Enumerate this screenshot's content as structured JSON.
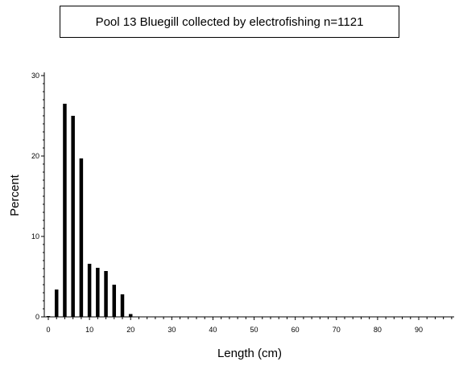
{
  "title": "Pool 13 Bluegill collected by electrofishing n=1121",
  "chart_data": {
    "type": "bar",
    "title": "Pool 13 Bluegill collected by electrofishing n=1121",
    "xlabel": "Length (cm)",
    "ylabel": "Percent",
    "xlim": [
      -0.5,
      99
    ],
    "ylim": [
      0,
      30
    ],
    "xticks": [
      0,
      10,
      20,
      30,
      40,
      50,
      60,
      70,
      80,
      90
    ],
    "yticks": [
      0,
      10,
      20,
      30
    ],
    "x": [
      0,
      2,
      4,
      6,
      8,
      10,
      12,
      14,
      16,
      18,
      20,
      22
    ],
    "values": [
      0.1,
      3.4,
      26.5,
      25.0,
      19.7,
      6.6,
      6.1,
      5.7,
      4.0,
      2.8,
      0.35,
      0.05
    ],
    "bar_color": "#000000",
    "grid": false,
    "legend": "none"
  }
}
